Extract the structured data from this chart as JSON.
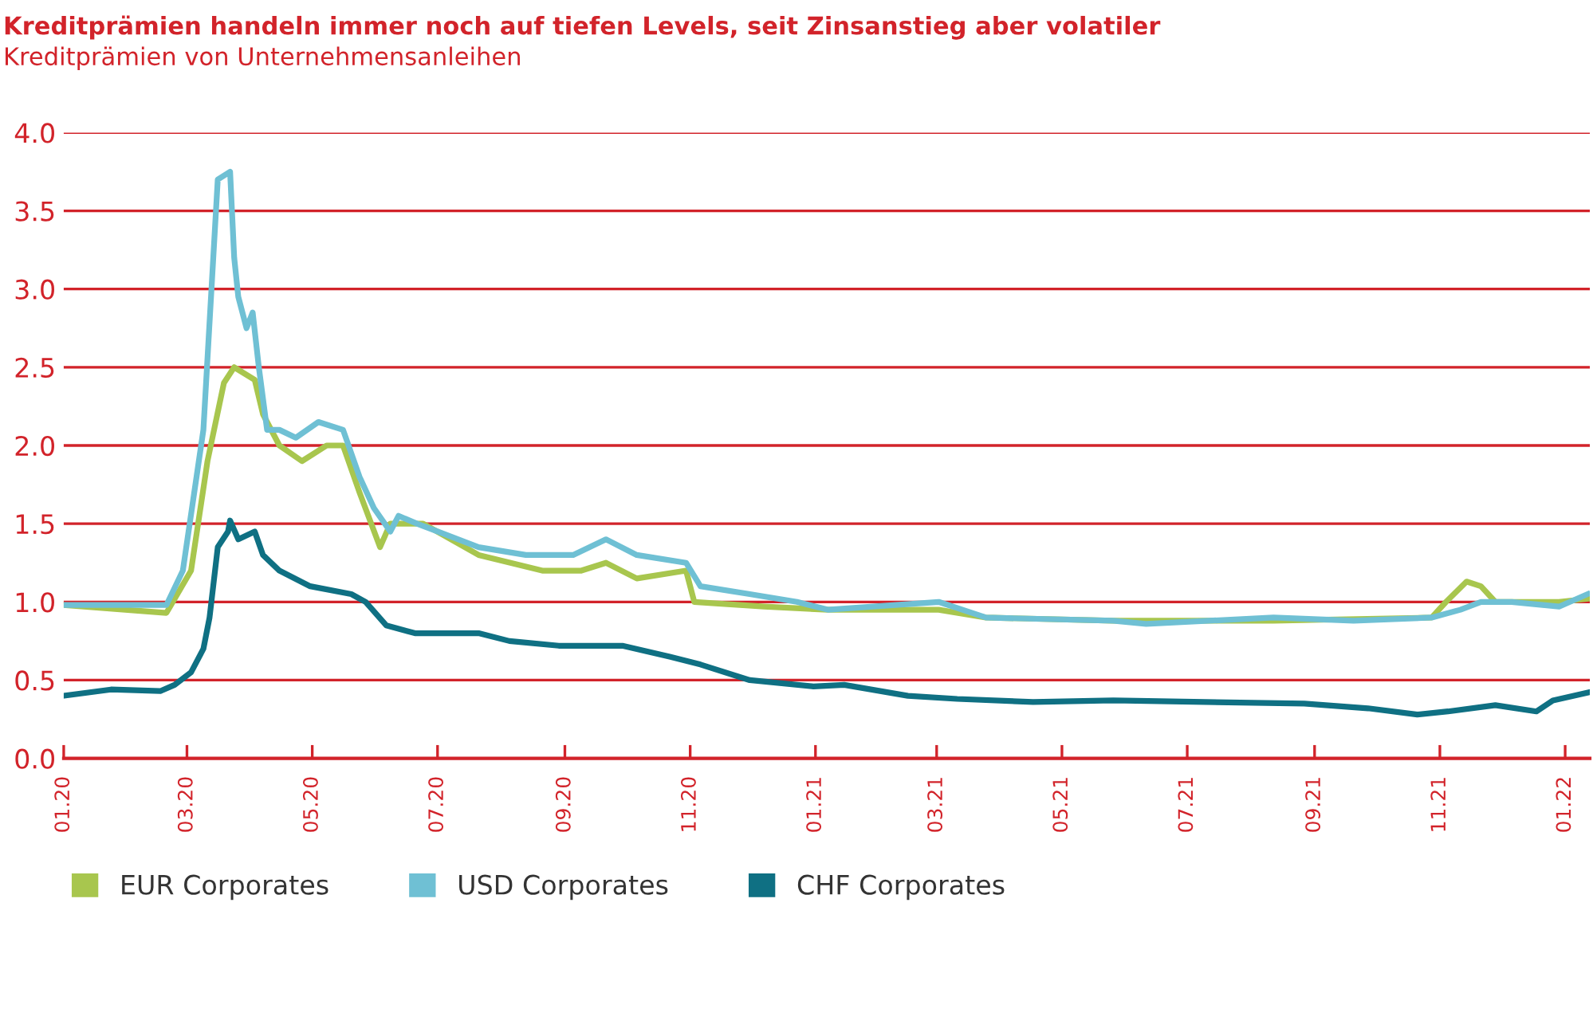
{
  "chart_data": {
    "type": "line",
    "title": "Kreditprämien handeln immer noch auf tiefen Levels, seit Zinsanstieg aber volatiler",
    "subtitle": "Kreditprämien von Unternehmensanleihen",
    "xlim": [
      "2020-01-01",
      "2022-01-13"
    ],
    "xticks": [
      {
        "value": "2020-01-01",
        "label": "01.20"
      },
      {
        "value": "2020-03-01",
        "label": "03.20"
      },
      {
        "value": "2020-05-01",
        "label": "05.20"
      },
      {
        "value": "2020-07-01",
        "label": "07.20"
      },
      {
        "value": "2020-09-01",
        "label": "09.20"
      },
      {
        "value": "2020-11-01",
        "label": "11.20"
      },
      {
        "value": "2021-01-01",
        "label": "01.21"
      },
      {
        "value": "2021-03-01",
        "label": "03.21"
      },
      {
        "value": "2021-05-01",
        "label": "05.21"
      },
      {
        "value": "2021-07-01",
        "label": "07.21"
      },
      {
        "value": "2021-09-01",
        "label": "09.21"
      },
      {
        "value": "2021-11-01",
        "label": "11.21"
      },
      {
        "value": "2022-01-01",
        "label": "01.22"
      }
    ],
    "ylim": [
      0,
      4
    ],
    "yticks": [
      {
        "value": 0,
        "label": "0.0"
      },
      {
        "value": 0.5,
        "label": "0.5"
      },
      {
        "value": 1,
        "label": "1.0"
      },
      {
        "value": 1.5,
        "label": "1.5"
      },
      {
        "value": 2,
        "label": "2.0"
      },
      {
        "value": 2.5,
        "label": "2.5"
      },
      {
        "value": 3,
        "label": "3.0"
      },
      {
        "value": 3.5,
        "label": "3.5"
      },
      {
        "value": 4,
        "label": "4.0"
      }
    ],
    "grid": "y",
    "legend": "bottom",
    "series": [
      {
        "name": "EUR Corporates",
        "color": "#a8c64e",
        "x": [
          "2020-01-01",
          "2020-02-20",
          "2020-03-03",
          "2020-03-11",
          "2020-03-19",
          "2020-03-24",
          "2020-04-03",
          "2020-04-07",
          "2020-04-15",
          "2020-04-26",
          "2020-05-08",
          "2020-05-16",
          "2020-05-24",
          "2020-06-03",
          "2020-06-08",
          "2020-06-24",
          "2020-07-21",
          "2020-08-21",
          "2020-09-09",
          "2020-09-21",
          "2020-10-06",
          "2020-10-30",
          "2020-11-03",
          "2020-12-07",
          "2021-01-07",
          "2021-03-02",
          "2021-03-25",
          "2021-05-26",
          "2021-08-12",
          "2021-10-28",
          "2021-11-04",
          "2021-11-14",
          "2021-11-21",
          "2021-11-28",
          "2021-12-29",
          "2022-01-12"
        ],
        "values": [
          0.98,
          0.93,
          1.2,
          1.9,
          2.4,
          2.5,
          2.42,
          2.2,
          2.0,
          1.9,
          2.0,
          2.0,
          1.7,
          1.35,
          1.5,
          1.5,
          1.3,
          1.2,
          1.2,
          1.25,
          1.15,
          1.2,
          1.0,
          0.97,
          0.95,
          0.95,
          0.9,
          0.88,
          0.88,
          0.9,
          1.0,
          1.13,
          1.1,
          1.0,
          1.0,
          1.02
        ]
      },
      {
        "name": "USD Corporates",
        "color": "#6fc0d4",
        "x": [
          "2020-01-01",
          "2020-02-20",
          "2020-02-28",
          "2020-03-09",
          "2020-03-16",
          "2020-03-22",
          "2020-03-24",
          "2020-03-26",
          "2020-03-30",
          "2020-04-02",
          "2020-04-05",
          "2020-04-09",
          "2020-04-15",
          "2020-04-23",
          "2020-05-04",
          "2020-05-16",
          "2020-05-24",
          "2020-05-31",
          "2020-06-08",
          "2020-06-12",
          "2020-06-21",
          "2020-07-01",
          "2020-07-21",
          "2020-08-13",
          "2020-09-05",
          "2020-09-21",
          "2020-10-06",
          "2020-10-30",
          "2020-11-06",
          "2020-11-30",
          "2020-12-23",
          "2021-01-07",
          "2021-03-02",
          "2021-03-25",
          "2021-05-26",
          "2021-06-11",
          "2021-08-12",
          "2021-09-20",
          "2021-10-28",
          "2021-11-11",
          "2021-11-21",
          "2021-12-06",
          "2021-12-29",
          "2022-01-12"
        ],
        "values": [
          0.98,
          0.98,
          1.2,
          2.1,
          3.7,
          3.75,
          3.2,
          2.95,
          2.75,
          2.85,
          2.5,
          2.1,
          2.1,
          2.05,
          2.15,
          2.1,
          1.8,
          1.6,
          1.45,
          1.55,
          1.5,
          1.45,
          1.35,
          1.3,
          1.3,
          1.4,
          1.3,
          1.25,
          1.1,
          1.05,
          1.0,
          0.95,
          1.0,
          0.9,
          0.88,
          0.86,
          0.9,
          0.88,
          0.9,
          0.95,
          1.0,
          1.0,
          0.97,
          1.05
        ]
      },
      {
        "name": "CHF Corporates",
        "color": "#0f7083",
        "x": [
          "2020-01-01",
          "2020-01-24",
          "2020-02-17",
          "2020-02-24",
          "2020-03-03",
          "2020-03-09",
          "2020-03-12",
          "2020-03-16",
          "2020-03-21",
          "2020-03-22",
          "2020-03-26",
          "2020-04-03",
          "2020-04-07",
          "2020-04-15",
          "2020-04-30",
          "2020-05-20",
          "2020-05-27",
          "2020-06-06",
          "2020-06-20",
          "2020-07-21",
          "2020-08-05",
          "2020-08-29",
          "2020-09-29",
          "2020-10-22",
          "2020-11-06",
          "2020-11-30",
          "2020-12-31",
          "2021-01-15",
          "2021-02-15",
          "2021-03-11",
          "2021-04-17",
          "2021-05-26",
          "2021-08-27",
          "2021-09-27",
          "2021-10-21",
          "2021-11-05",
          "2021-11-28",
          "2021-12-18",
          "2021-12-26",
          "2022-01-12"
        ],
        "values": [
          0.4,
          0.44,
          0.43,
          0.47,
          0.55,
          0.7,
          0.9,
          1.35,
          1.45,
          1.52,
          1.4,
          1.45,
          1.3,
          1.2,
          1.1,
          1.05,
          1.0,
          0.85,
          0.8,
          0.8,
          0.75,
          0.72,
          0.72,
          0.65,
          0.6,
          0.5,
          0.46,
          0.47,
          0.4,
          0.38,
          0.36,
          0.37,
          0.35,
          0.32,
          0.28,
          0.3,
          0.34,
          0.3,
          0.37,
          0.42
        ]
      }
    ]
  }
}
